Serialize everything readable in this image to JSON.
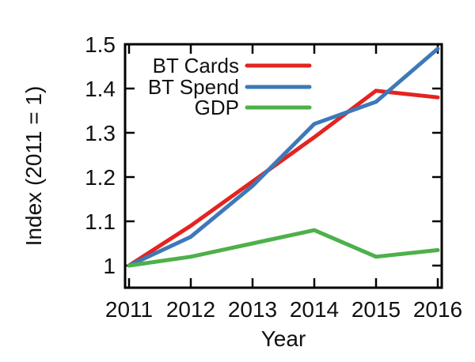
{
  "chart_data": {
    "type": "line",
    "title": "",
    "xlabel": "Year",
    "ylabel": "Index (2011 = 1)",
    "x": [
      2011,
      2012,
      2013,
      2014,
      2015,
      2016
    ],
    "xtick_labels": [
      "2011",
      "2012",
      "2013",
      "2014",
      "2015",
      "2016"
    ],
    "yticks": [
      1.0,
      1.1,
      1.2,
      1.3,
      1.4,
      1.5
    ],
    "ytick_labels": [
      "1",
      "1.1",
      "1.2",
      "1.3",
      "1.4",
      "1.5"
    ],
    "xlim": [
      2011,
      2016
    ],
    "ylim": [
      0.95,
      1.5
    ],
    "grid": false,
    "legend_position": "inside-top-left",
    "series": [
      {
        "name": "BT Cards",
        "color": "#e32420",
        "values": [
          1.0,
          1.09,
          1.19,
          1.29,
          1.395,
          1.38
        ]
      },
      {
        "name": "BT Spend",
        "color": "#3d79b8",
        "values": [
          1.0,
          1.065,
          1.18,
          1.32,
          1.37,
          1.49
        ]
      },
      {
        "name": "GDP",
        "color": "#4eb04a",
        "values": [
          1.0,
          1.02,
          1.05,
          1.08,
          1.02,
          1.035
        ]
      }
    ]
  },
  "colors": {
    "axis": "#000000",
    "text": "#111111",
    "background": "#ffffff"
  }
}
